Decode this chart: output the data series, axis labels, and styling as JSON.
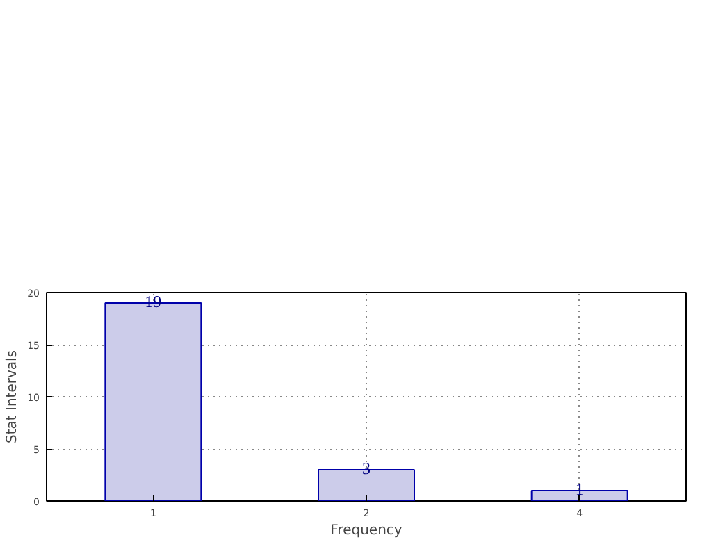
{
  "chart_data": {
    "type": "bar",
    "xlabel": "Frequency",
    "ylabel": "Stat Intervals",
    "categories": [
      "1",
      "2",
      "4"
    ],
    "values": [
      19,
      3,
      1
    ],
    "color": "#ccccea",
    "ylim": [
      0,
      20
    ],
    "yticks": [
      0,
      5,
      10,
      15,
      20
    ],
    "grid": true,
    "data_labels": true
  }
}
